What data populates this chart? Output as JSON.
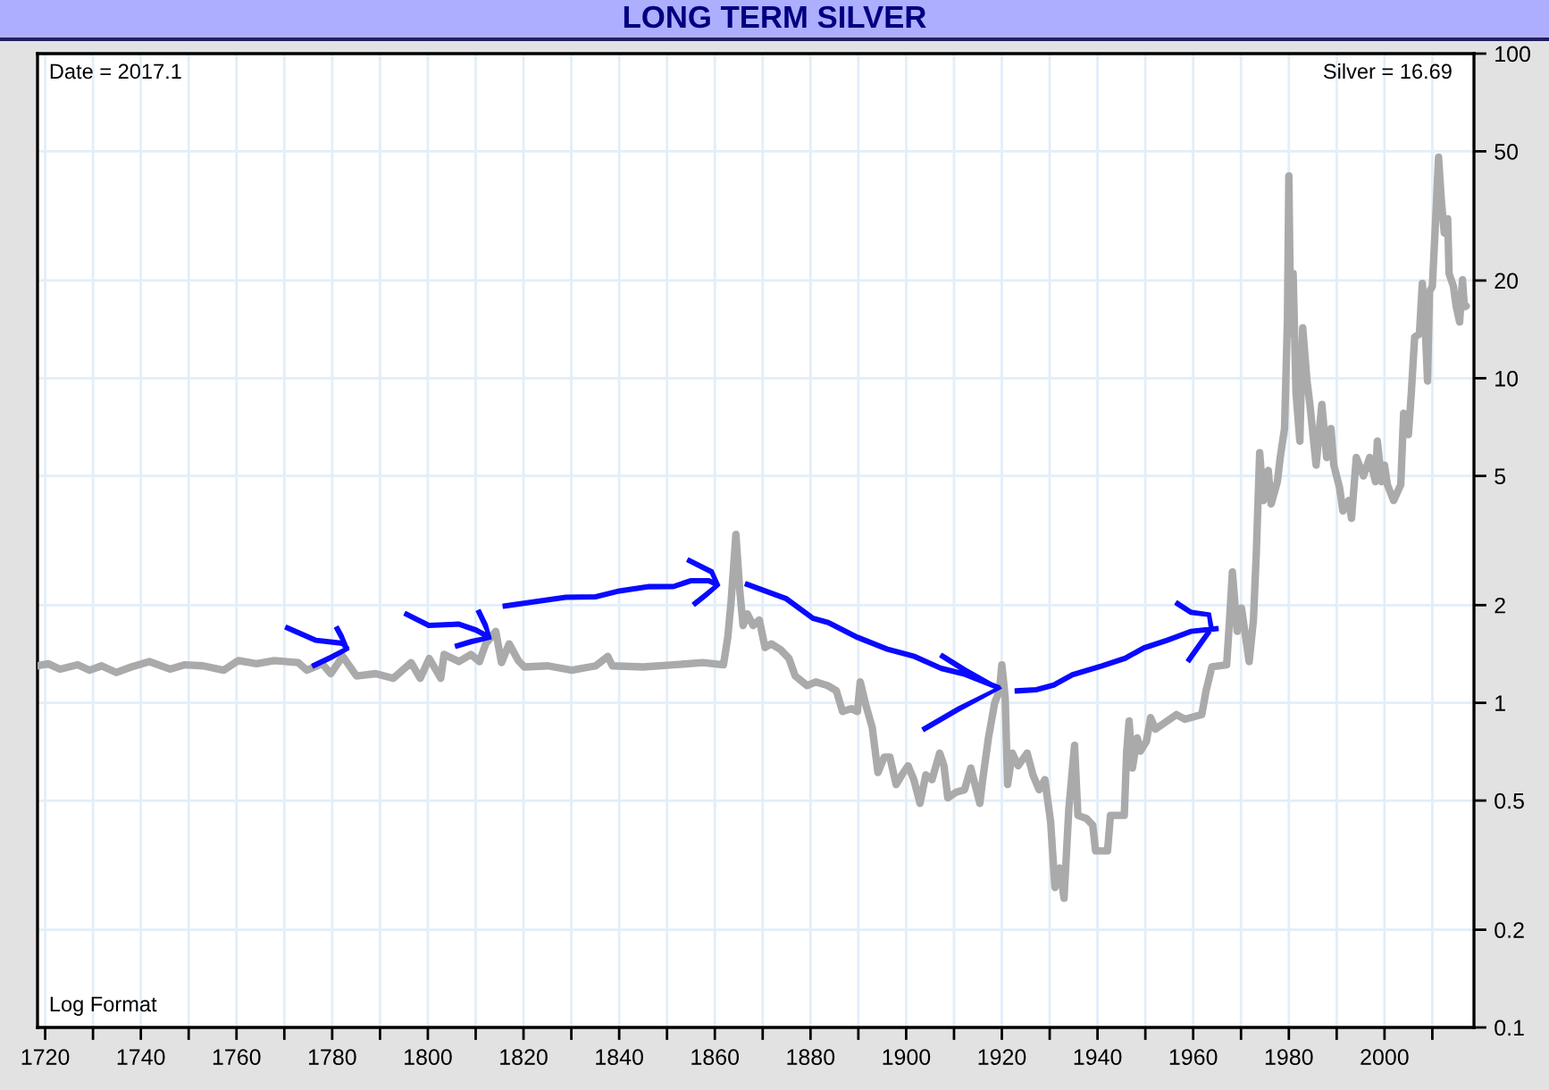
{
  "chart_data": {
    "type": "line",
    "title": "LONG TERM SILVER",
    "annotations": [
      "Date = 2017.1",
      "Silver = 16.69",
      "Log Format"
    ],
    "x": [
      1718.5,
      1720.6,
      1723.1,
      1726.8,
      1729.3,
      1731.8,
      1734.9,
      1738.0,
      1741.8,
      1746.1,
      1749.2,
      1753.0,
      1757.3,
      1760.4,
      1764.2,
      1767.9,
      1772.9,
      1774.7,
      1777.9,
      1779.7,
      1782.2,
      1785.1,
      1789.1,
      1792.8,
      1796.5,
      1798.4,
      1800.3,
      1802.7,
      1803.4,
      1806.5,
      1809.0,
      1810.8,
      1812.1,
      1814.2,
      1815.4,
      1817.0,
      1818.9,
      1820.2,
      1825.1,
      1830.1,
      1835.1,
      1837.6,
      1838.6,
      1845.0,
      1851.3,
      1857.5,
      1861.8,
      1862.7,
      1863.4,
      1864.4,
      1865.2,
      1865.9,
      1866.8,
      1868.0,
      1869.3,
      1870.5,
      1871.8,
      1873.7,
      1875.5,
      1876.8,
      1879.3,
      1881.1,
      1883.6,
      1885.4,
      1886.7,
      1888.5,
      1889.8,
      1890.4,
      1891.6,
      1892.9,
      1894.1,
      1895.4,
      1896.6,
      1897.9,
      1899.1,
      1900.4,
      1901.6,
      1902.9,
      1904.1,
      1905.4,
      1907.0,
      1907.9,
      1908.7,
      1910.4,
      1912.2,
      1913.5,
      1915.4,
      1916.0,
      1917.2,
      1918.5,
      1919.5,
      1920.0,
      1920.7,
      1921.2,
      1922.2,
      1923.4,
      1925.3,
      1926.5,
      1927.8,
      1929.0,
      1930.2,
      1931.1,
      1932.1,
      1933.0,
      1934.0,
      1935.2,
      1935.9,
      1937.7,
      1939.0,
      1939.6,
      1942.1,
      1942.7,
      1945.6,
      1946.1,
      1946.6,
      1947.3,
      1948.3,
      1949.0,
      1950.2,
      1951.1,
      1952.1,
      1954.6,
      1956.5,
      1958.3,
      1961.8,
      1962.7,
      1963.9,
      1967.0,
      1967.6,
      1968.2,
      1969.2,
      1970.1,
      1970.9,
      1971.7,
      1972.6,
      1973.2,
      1973.9,
      1974.7,
      1975.7,
      1976.3,
      1977.6,
      1978.2,
      1979.1,
      1979.7,
      1980.0,
      1980.4,
      1980.9,
      1981.5,
      1982.3,
      1982.9,
      1983.8,
      1984.4,
      1985.7,
      1986.9,
      1987.9,
      1988.8,
      1989.4,
      1990.6,
      1991.3,
      1992.5,
      1993.1,
      1994.1,
      1995.6,
      1996.9,
      1998.1,
      1998.5,
      1999.4,
      2000.0,
      2000.6,
      2001.9,
      2003.4,
      2004.0,
      2005.0,
      2005.6,
      2006.3,
      2007.3,
      2007.9,
      2008.4,
      2009.0,
      2009.4,
      2010.0,
      2010.7,
      2011.3,
      2011.9,
      2012.5,
      2013.2,
      2013.5,
      2014.4,
      2015.0,
      2015.7,
      2016.3,
      2016.7,
      2017.1
    ],
    "values": [
      1.3,
      1.32,
      1.27,
      1.31,
      1.26,
      1.3,
      1.24,
      1.29,
      1.34,
      1.27,
      1.31,
      1.3,
      1.26,
      1.35,
      1.32,
      1.35,
      1.33,
      1.26,
      1.32,
      1.23,
      1.39,
      1.21,
      1.23,
      1.19,
      1.33,
      1.19,
      1.37,
      1.19,
      1.41,
      1.34,
      1.41,
      1.34,
      1.52,
      1.66,
      1.33,
      1.52,
      1.35,
      1.29,
      1.3,
      1.26,
      1.3,
      1.39,
      1.3,
      1.29,
      1.31,
      1.33,
      1.31,
      1.59,
      2.05,
      3.3,
      2.23,
      1.73,
      1.88,
      1.73,
      1.8,
      1.48,
      1.52,
      1.46,
      1.37,
      1.21,
      1.13,
      1.16,
      1.13,
      1.09,
      0.94,
      0.96,
      0.94,
      1.16,
      0.98,
      0.84,
      0.61,
      0.68,
      0.68,
      0.56,
      0.6,
      0.64,
      0.58,
      0.49,
      0.6,
      0.58,
      0.7,
      0.64,
      0.51,
      0.53,
      0.54,
      0.63,
      0.49,
      0.58,
      0.78,
      1.0,
      1.09,
      1.31,
      1.04,
      0.56,
      0.7,
      0.64,
      0.7,
      0.6,
      0.54,
      0.58,
      0.43,
      0.27,
      0.31,
      0.25,
      0.47,
      0.74,
      0.45,
      0.44,
      0.42,
      0.35,
      0.35,
      0.45,
      0.45,
      0.71,
      0.88,
      0.63,
      0.78,
      0.71,
      0.76,
      0.9,
      0.83,
      0.88,
      0.92,
      0.89,
      0.92,
      1.09,
      1.29,
      1.31,
      1.8,
      2.53,
      1.66,
      1.96,
      1.62,
      1.34,
      1.8,
      2.9,
      5.9,
      4.2,
      5.2,
      4.1,
      4.8,
      5.7,
      7.0,
      15,
      42,
      13.7,
      21,
      9.0,
      6.4,
      14.3,
      9.8,
      8.3,
      5.4,
      8.3,
      5.7,
      7.0,
      5.4,
      4.6,
      3.9,
      4.2,
      3.7,
      5.7,
      5.0,
      5.7,
      4.8,
      6.4,
      4.8,
      5.4,
      4.7,
      4.2,
      4.7,
      7.8,
      6.7,
      9.0,
      13.4,
      13.7,
      19.6,
      15.6,
      9.8,
      18.5,
      19.2,
      31,
      48,
      35,
      28,
      31,
      21,
      19.2,
      16.6,
      14.9,
      20.1,
      16.6,
      16.69
    ],
    "color": "#aaaaaa",
    "log": "y",
    "grid": true,
    "xlim": [
      1718.4,
      2018.7
    ],
    "xticks": [
      1720,
      {
        "value": 1730,
        "label": null
      },
      1740,
      {
        "value": 1750,
        "label": null
      },
      1760,
      {
        "value": 1770,
        "label": null
      },
      1780,
      {
        "value": 1790,
        "label": null
      },
      1800,
      {
        "value": 1810,
        "label": null
      },
      1820,
      {
        "value": 1830,
        "label": null
      },
      1840,
      {
        "value": 1850,
        "label": null
      },
      1860,
      {
        "value": 1870,
        "label": null
      },
      1880,
      {
        "value": 1890,
        "label": null
      },
      1900,
      {
        "value": 1910,
        "label": null
      },
      1920,
      {
        "value": 1930,
        "label": null
      },
      1940,
      {
        "value": 1950,
        "label": null
      },
      1960,
      {
        "value": 1970,
        "label": null
      },
      1980,
      {
        "value": 1990,
        "label": null
      },
      2000,
      {
        "value": 2010,
        "label": null
      }
    ],
    "ylim": [
      0.1,
      100
    ],
    "yticks": [
      0.1,
      0.2,
      0.5,
      1,
      2,
      5,
      10,
      20,
      50,
      100
    ]
  }
}
